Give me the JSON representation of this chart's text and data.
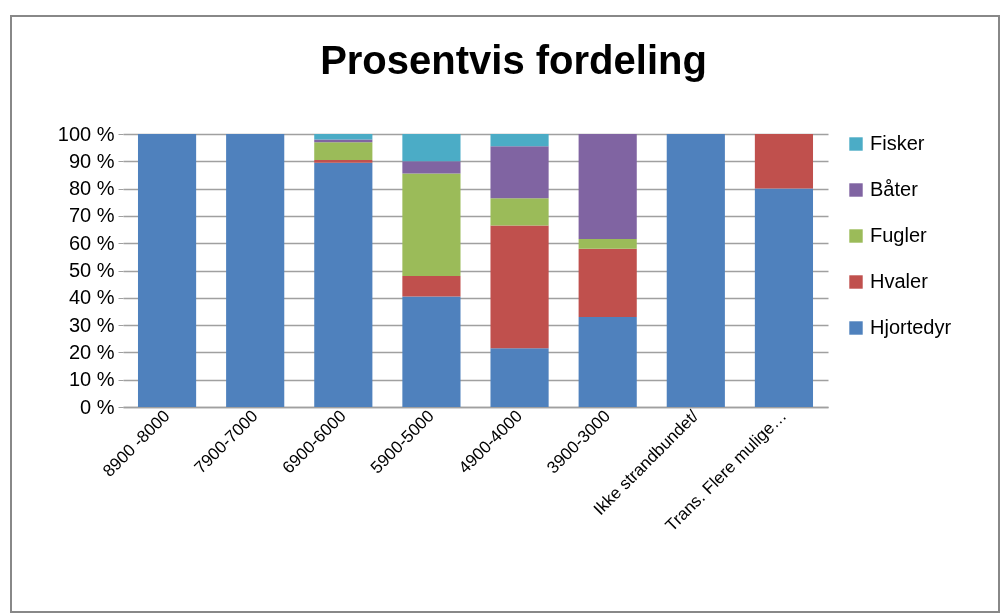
{
  "chart_data": {
    "type": "bar",
    "title": "Prosentvis fordeling",
    "stacked": true,
    "grid": "y",
    "legend": "right",
    "categories": [
      "8900 -8000",
      "7900-7000",
      "6900-6000",
      "5900-5000",
      "4900-4000",
      "3900-3000",
      "Ikke strandbundet/",
      "Trans. Flere mulige…"
    ],
    "ylim": [
      0,
      100
    ],
    "yticks": [
      {
        "value": 0,
        "label": "0 %"
      },
      {
        "value": 10,
        "label": "10 %"
      },
      {
        "value": 20,
        "label": "20 %"
      },
      {
        "value": 30,
        "label": "30 %"
      },
      {
        "value": 40,
        "label": "40 %"
      },
      {
        "value": 50,
        "label": "50 %"
      },
      {
        "value": 60,
        "label": "60 %"
      },
      {
        "value": 70,
        "label": "70 %"
      },
      {
        "value": 80,
        "label": "80 %"
      },
      {
        "value": 90,
        "label": "90 %"
      },
      {
        "value": 100,
        "label": "100 %"
      }
    ],
    "series": [
      {
        "name": "Hjortedyr",
        "color": "#4f81bd",
        "values": [
          100,
          100,
          89.5,
          40.5,
          21.5,
          33,
          100,
          80
        ]
      },
      {
        "name": "Hvaler",
        "color": "#c0504d",
        "values": [
          0,
          0,
          1,
          7.5,
          45,
          25,
          0,
          20
        ]
      },
      {
        "name": "Fugler",
        "color": "#9bbb59",
        "values": [
          0,
          0,
          6.5,
          37.5,
          10,
          3.5,
          0,
          0
        ]
      },
      {
        "name": "Båter",
        "color": "#8064a2",
        "values": [
          0,
          0,
          1,
          4.5,
          19,
          38.5,
          0,
          0
        ]
      },
      {
        "name": "Fisker",
        "color": "#4bacc6",
        "values": [
          0,
          0,
          2,
          10,
          4.5,
          0,
          0,
          0
        ]
      }
    ]
  }
}
